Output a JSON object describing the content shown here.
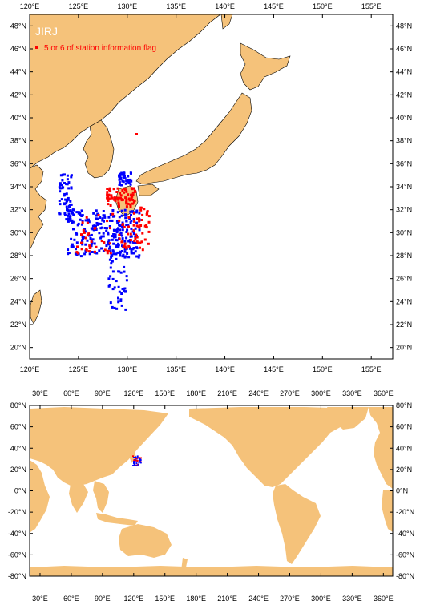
{
  "regional_map": {
    "station_code": "JIRJ",
    "legend_label": "5 or 6 of station information flag",
    "flag_color": "#ff0000",
    "normal_color": "#0000ff",
    "land_color": "#f5c27a",
    "ocean_color": "#ffffff",
    "lon_ticks": [
      "120°E",
      "125°E",
      "130°E",
      "135°E",
      "140°E",
      "145°E",
      "150°E",
      "155°E"
    ],
    "lat_ticks": [
      "20°N",
      "22°N",
      "24°N",
      "26°N",
      "28°N",
      "30°N",
      "32°N",
      "34°N",
      "36°N",
      "38°N",
      "40°N",
      "42°N",
      "44°N",
      "46°N",
      "48°N"
    ]
  },
  "global_map": {
    "lon_ticks": [
      "30°E",
      "60°E",
      "90°E",
      "120°E",
      "150°E",
      "180°E",
      "210°E",
      "240°E",
      "270°E",
      "300°E",
      "330°E",
      "360°E"
    ],
    "lat_ticks": [
      "80°N",
      "60°N",
      "40°N",
      "20°N",
      "0°N",
      "-20°N",
      "-40°N",
      "-60°N",
      "-80°N"
    ],
    "land_color": "#f5c27a"
  }
}
